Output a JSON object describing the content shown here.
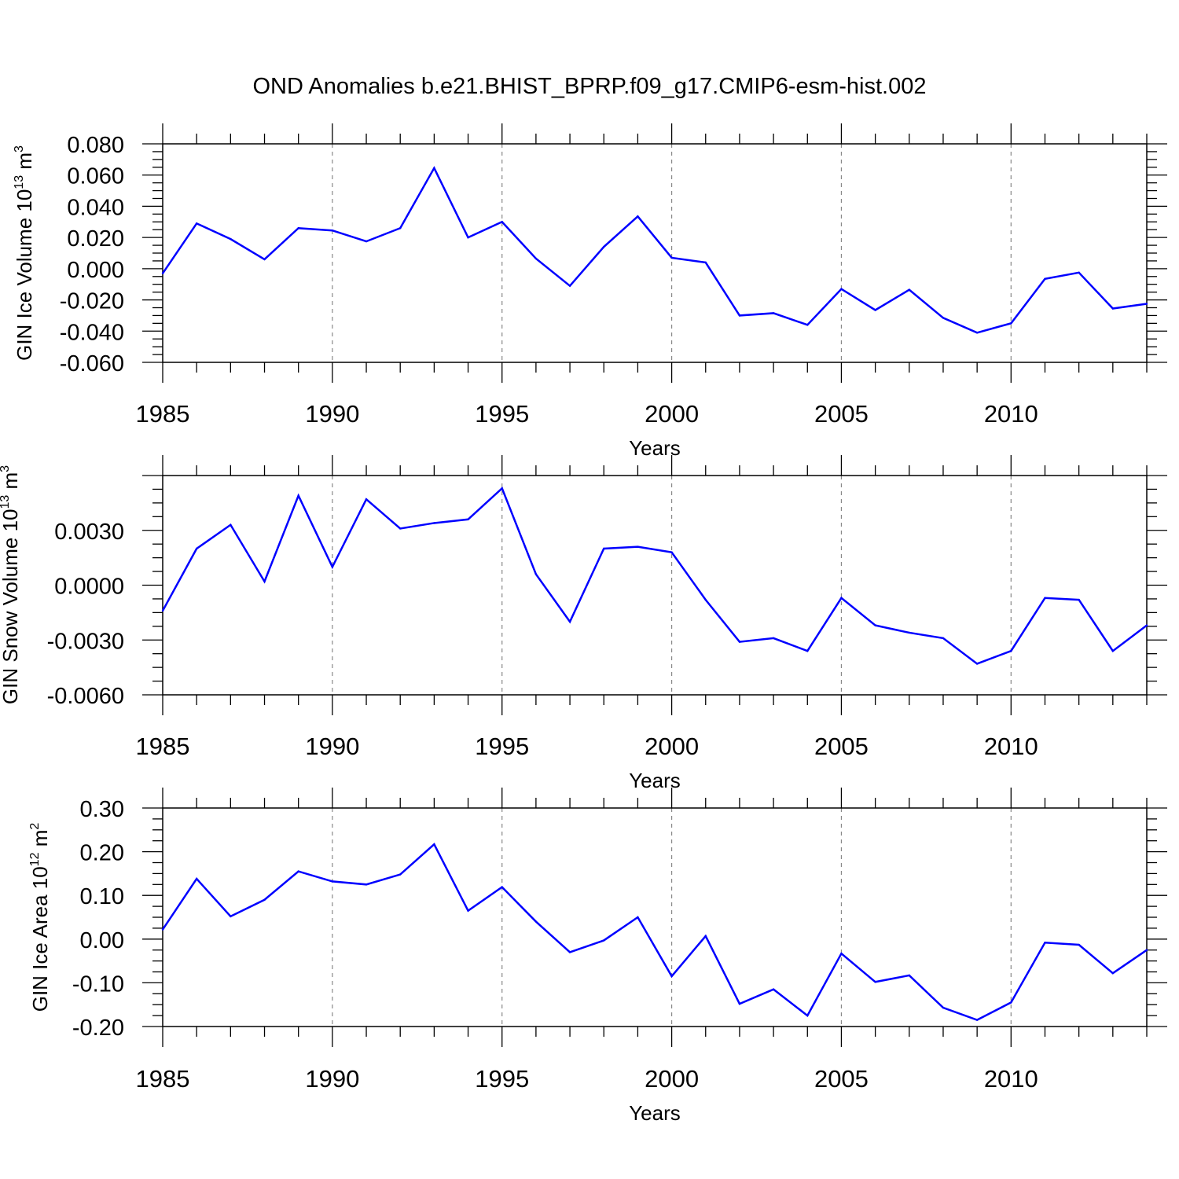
{
  "title": "OND Anomalies b.e21.BHIST_BPRP.f09_g17.CMIP6-esm-hist.002",
  "line_color": "#0000ff",
  "grid_color": "#888888",
  "chart_data": [
    {
      "type": "line",
      "xlabel": "Years",
      "ylabel": {
        "text": "GIN Ice Volume 10",
        "exp": "13",
        "unit": " m",
        "unit_exp": "3"
      },
      "xlim": [
        1985,
        2014
      ],
      "ylim": [
        -0.06,
        0.08
      ],
      "x_ticks": [
        "1985",
        "1990",
        "1995",
        "2000",
        "2005",
        "2010"
      ],
      "y_ticks": [
        "0.080",
        "0.060",
        "0.040",
        "0.020",
        "0.000",
        "-0.020",
        "-0.040",
        "-0.060"
      ],
      "grid": "vertical dashed at major x ticks",
      "x": [
        1985,
        1986,
        1987,
        1988,
        1989,
        1990,
        1991,
        1992,
        1993,
        1994,
        1995,
        1996,
        1997,
        1998,
        1999,
        2000,
        2001,
        2002,
        2003,
        2004,
        2005,
        2006,
        2007,
        2008,
        2009,
        2010,
        2011,
        2012,
        2013,
        2014
      ],
      "values": [
        -0.003,
        0.029,
        0.019,
        0.006,
        0.026,
        0.0245,
        0.0175,
        0.026,
        0.0645,
        0.02,
        0.03,
        0.0065,
        -0.011,
        0.014,
        0.0335,
        0.007,
        0.004,
        -0.03,
        -0.0285,
        -0.036,
        -0.013,
        -0.0265,
        -0.0135,
        -0.0315,
        -0.041,
        -0.035,
        -0.0065,
        -0.0025,
        -0.0255,
        -0.0225
      ]
    },
    {
      "type": "line",
      "xlabel": "Years",
      "ylabel": {
        "text": "GIN Snow Volume 10",
        "exp": "13",
        "unit": " m",
        "unit_exp": "3"
      },
      "xlim": [
        1985,
        2014
      ],
      "ylim": [
        -0.006,
        0.006
      ],
      "x_ticks": [
        "1985",
        "1990",
        "1995",
        "2000",
        "2005",
        "2010"
      ],
      "y_ticks": [
        "0.0030",
        "0.0000",
        "-0.0030",
        "-0.0060"
      ],
      "y_tick_values": [
        0.003,
        0.0,
        -0.003,
        -0.006
      ],
      "grid": "vertical dashed at major x ticks",
      "x": [
        1985,
        1986,
        1987,
        1988,
        1989,
        1990,
        1991,
        1992,
        1993,
        1994,
        1995,
        1996,
        1997,
        1998,
        1999,
        2000,
        2001,
        2002,
        2003,
        2004,
        2005,
        2006,
        2007,
        2008,
        2009,
        2010,
        2011,
        2012,
        2013,
        2014
      ],
      "values": [
        -0.0014,
        0.002,
        0.0033,
        0.0002,
        0.0049,
        0.001,
        0.0047,
        0.0031,
        0.0034,
        0.0036,
        0.0053,
        0.0006,
        -0.002,
        0.002,
        0.0021,
        0.0018,
        -0.0008,
        -0.0031,
        -0.0029,
        -0.0036,
        -0.0007,
        -0.0022,
        -0.0026,
        -0.0029,
        -0.0043,
        -0.0036,
        -0.0007,
        -0.0008,
        -0.0036,
        -0.0022
      ]
    },
    {
      "type": "line",
      "xlabel": "Years",
      "ylabel": {
        "text": "GIN Ice Area 10",
        "exp": "12",
        "unit": " m",
        "unit_exp": "2"
      },
      "xlim": [
        1985,
        2014
      ],
      "ylim": [
        -0.2,
        0.3
      ],
      "x_ticks": [
        "1985",
        "1990",
        "1995",
        "2000",
        "2005",
        "2010"
      ],
      "y_ticks": [
        "0.30",
        "0.20",
        "0.10",
        "0.00",
        "-0.10",
        "-0.20"
      ],
      "grid": "vertical dashed at major x ticks",
      "x": [
        1985,
        1986,
        1987,
        1988,
        1989,
        1990,
        1991,
        1992,
        1993,
        1994,
        1995,
        1996,
        1997,
        1998,
        1999,
        2000,
        2001,
        2002,
        2003,
        2004,
        2005,
        2006,
        2007,
        2008,
        2009,
        2010,
        2011,
        2012,
        2013,
        2014
      ],
      "values": [
        0.022,
        0.138,
        0.052,
        0.09,
        0.155,
        0.132,
        0.125,
        0.148,
        0.217,
        0.065,
        0.119,
        0.04,
        -0.03,
        -0.003,
        0.05,
        -0.085,
        0.007,
        -0.148,
        -0.115,
        -0.175,
        -0.033,
        -0.098,
        -0.083,
        -0.157,
        -0.185,
        -0.145,
        -0.008,
        -0.013,
        -0.078,
        -0.025
      ]
    }
  ]
}
